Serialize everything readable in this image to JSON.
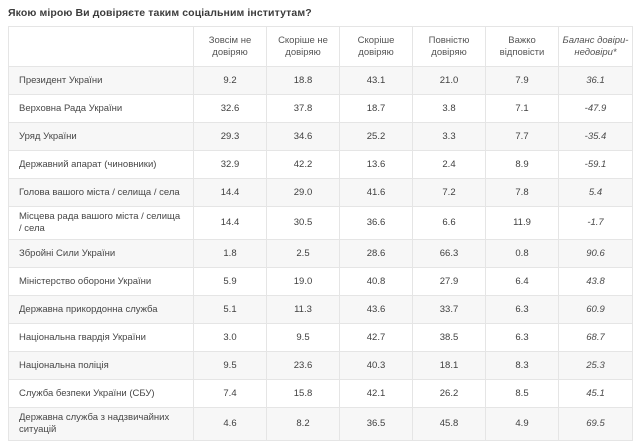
{
  "title": "Якою мірою Ви довіряєте таким соціальним інститутам?",
  "table": {
    "corner_label": "",
    "columns": [
      "Зовсім не довіряю",
      "Скоріше не довіряю",
      "Скоріше довіряю",
      "Повністю довіряю",
      "Важко відповісти",
      "Баланс довіри-недовіри*"
    ],
    "rows": [
      {
        "label": "Президент України",
        "values": [
          "9.2",
          "18.8",
          "43.1",
          "21.0",
          "7.9"
        ],
        "balance": "36.1"
      },
      {
        "label": "Верховна Рада України",
        "values": [
          "32.6",
          "37.8",
          "18.7",
          "3.8",
          "7.1"
        ],
        "balance": "-47.9"
      },
      {
        "label": "Уряд України",
        "values": [
          "29.3",
          "34.6",
          "25.2",
          "3.3",
          "7.7"
        ],
        "balance": "-35.4"
      },
      {
        "label": "Державний апарат (чиновники)",
        "values": [
          "32.9",
          "42.2",
          "13.6",
          "2.4",
          "8.9"
        ],
        "balance": "-59.1"
      },
      {
        "label": "Голова вашого міста / селища / села",
        "values": [
          "14.4",
          "29.0",
          "41.6",
          "7.2",
          "7.8"
        ],
        "balance": "5.4"
      },
      {
        "label": "Місцева рада вашого міста / селища / села",
        "values": [
          "14.4",
          "30.5",
          "36.6",
          "6.6",
          "11.9"
        ],
        "balance": "-1.7"
      },
      {
        "label": "Збройні Сили України",
        "values": [
          "1.8",
          "2.5",
          "28.6",
          "66.3",
          "0.8"
        ],
        "balance": "90.6"
      },
      {
        "label": "Міністерство оборони України",
        "values": [
          "5.9",
          "19.0",
          "40.8",
          "27.9",
          "6.4"
        ],
        "balance": "43.8"
      },
      {
        "label": "Державна прикордонна служба",
        "values": [
          "5.1",
          "11.3",
          "43.6",
          "33.7",
          "6.3"
        ],
        "balance": "60.9"
      },
      {
        "label": "Національна гвардія України",
        "values": [
          "3.0",
          "9.5",
          "42.7",
          "38.5",
          "6.3"
        ],
        "balance": "68.7"
      },
      {
        "label": "Національна поліція",
        "values": [
          "9.5",
          "23.6",
          "40.3",
          "18.1",
          "8.3"
        ],
        "balance": "25.3"
      },
      {
        "label": "Служба безпеки України (СБУ)",
        "values": [
          "7.4",
          "15.8",
          "42.1",
          "26.2",
          "8.5"
        ],
        "balance": "45.1"
      },
      {
        "label": "Державна служба з надзвичайних ситуацій",
        "values": [
          "4.6",
          "8.2",
          "36.5",
          "45.8",
          "4.9"
        ],
        "balance": "69.5"
      }
    ]
  },
  "colors": {
    "stripe": "#f7f7f7",
    "border": "#e5e5e5",
    "title_text": "#3c3c3c",
    "header_text": "#555555",
    "cell_text": "#404040",
    "balance_text": "#4a4a4a"
  },
  "chart_data": {
    "type": "table",
    "title": "Якою мірою Ви довіряєте таким соціальним інститутам?",
    "categories": [
      "Президент України",
      "Верховна Рада України",
      "Уряд України",
      "Державний апарат (чиновники)",
      "Голова вашого міста / селища / села",
      "Місцева рада вашого міста / селища / села",
      "Збройні Сили України",
      "Міністерство оборони України",
      "Державна прикордонна служба",
      "Національна гвардія України",
      "Національна поліція",
      "Служба безпеки України (СБУ)",
      "Державна служба з надзвичайних ситуацій"
    ],
    "series": [
      {
        "name": "Зовсім не довіряю",
        "values": [
          9.2,
          32.6,
          29.3,
          32.9,
          14.4,
          14.4,
          1.8,
          5.9,
          5.1,
          3.0,
          9.5,
          7.4,
          4.6
        ]
      },
      {
        "name": "Скоріше не довіряю",
        "values": [
          18.8,
          37.8,
          34.6,
          42.2,
          29.0,
          30.5,
          2.5,
          19.0,
          11.3,
          9.5,
          23.6,
          15.8,
          8.2
        ]
      },
      {
        "name": "Скоріше довіряю",
        "values": [
          43.1,
          18.7,
          25.2,
          13.6,
          41.6,
          36.6,
          28.6,
          40.8,
          43.6,
          42.7,
          40.3,
          42.1,
          36.5
        ]
      },
      {
        "name": "Повністю довіряю",
        "values": [
          21.0,
          3.8,
          3.3,
          2.4,
          7.2,
          6.6,
          66.3,
          27.9,
          33.7,
          38.5,
          18.1,
          26.2,
          45.8
        ]
      },
      {
        "name": "Важко відповісти",
        "values": [
          7.9,
          7.1,
          7.7,
          8.9,
          7.8,
          11.9,
          0.8,
          6.4,
          6.3,
          6.3,
          8.3,
          8.5,
          4.9
        ]
      },
      {
        "name": "Баланс довіри-недовіри*",
        "values": [
          36.1,
          -47.9,
          -35.4,
          -59.1,
          5.4,
          -1.7,
          90.6,
          43.8,
          60.9,
          68.7,
          25.3,
          45.1,
          69.5
        ]
      }
    ],
    "layout": {
      "units": "percent",
      "first_column_header": "",
      "balance_column_style": "italic",
      "grid": true,
      "legend_position": "none"
    }
  }
}
